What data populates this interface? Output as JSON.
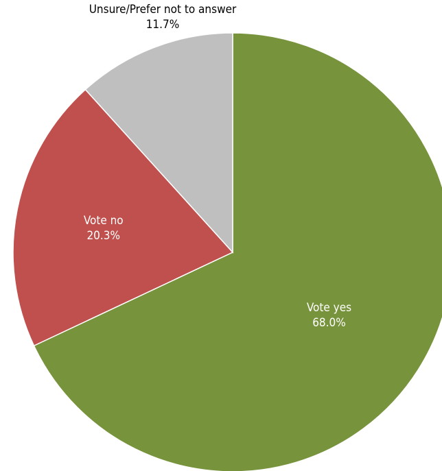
{
  "chart_data": {
    "type": "pie",
    "title": "",
    "slices": [
      {
        "label": "Vote yes",
        "value": 68.0,
        "display": "68.0%",
        "color": "#77933C",
        "label_color": "#ffffff",
        "label_position": "inside"
      },
      {
        "label": "Vote no",
        "value": 20.3,
        "display": "20.3%",
        "color": "#C0504D",
        "label_color": "#ffffff",
        "label_position": "inside"
      },
      {
        "label": "Unsure/Prefer not to answer",
        "value": 11.7,
        "display": "11.7%",
        "color": "#BFBFBF",
        "label_color": "#000000",
        "label_position": "outside"
      }
    ],
    "start_angle": "12 o'clock",
    "direction": "clockwise",
    "slice_border_color": "#ffffff",
    "legend": "none"
  }
}
